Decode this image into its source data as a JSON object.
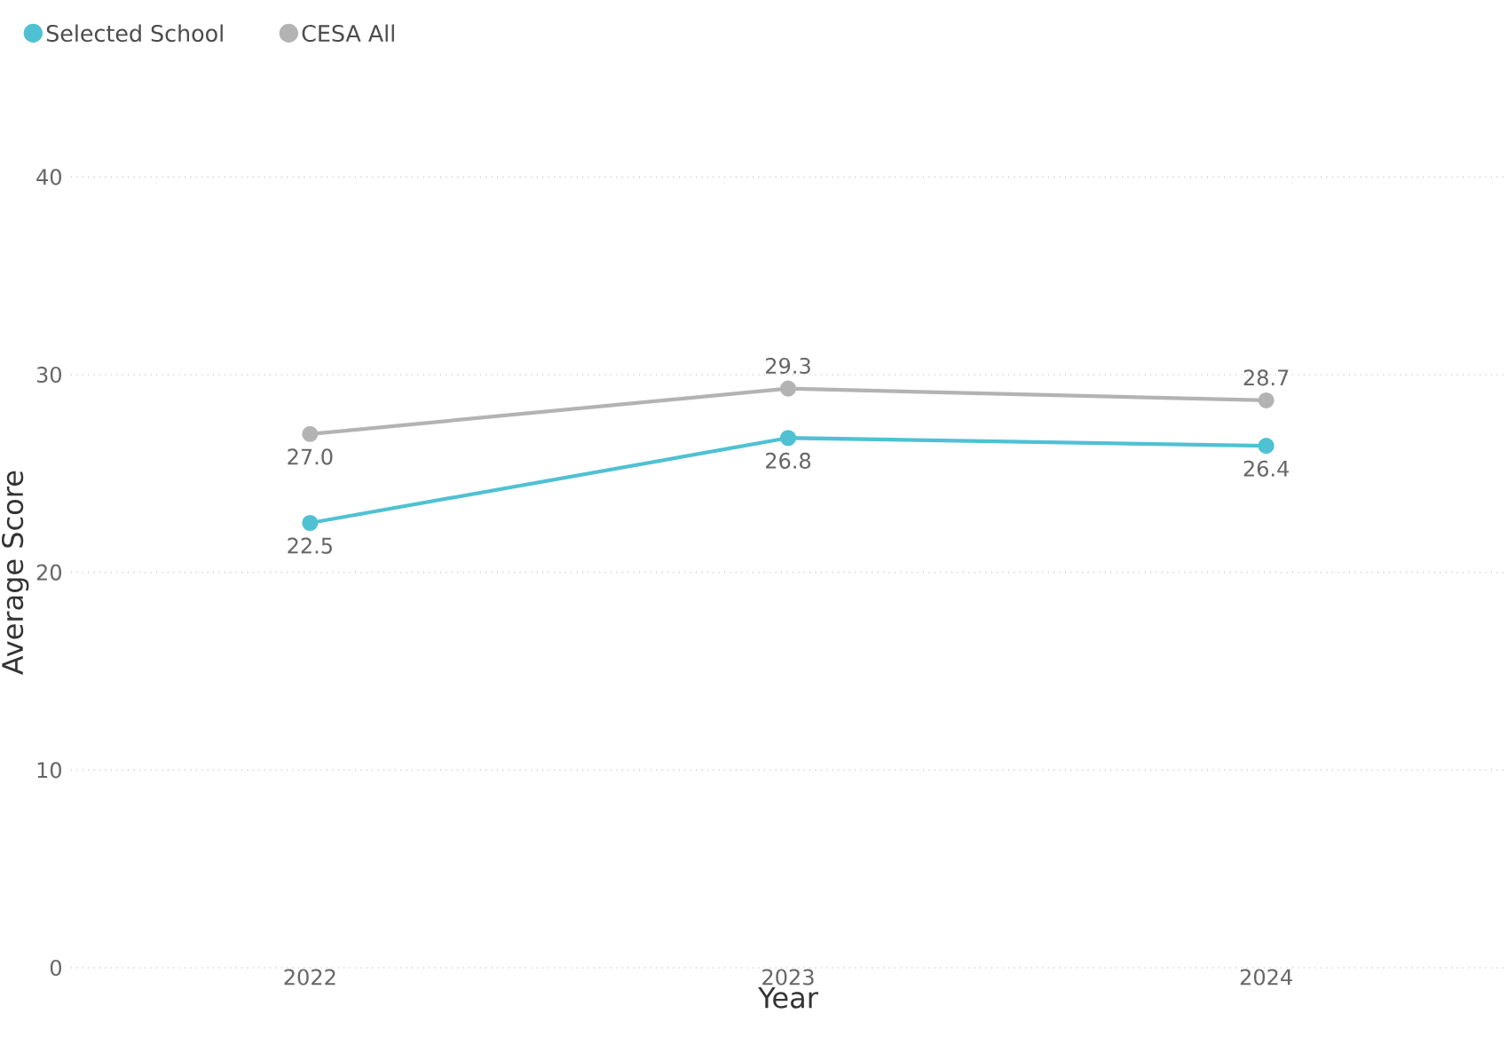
{
  "chart_data": {
    "type": "line",
    "xlabel": "Year",
    "ylabel": "Average Score",
    "categories": [
      "2022",
      "2023",
      "2024"
    ],
    "series": [
      {
        "name": "Selected School",
        "color": "#4fc1d3",
        "values": [
          22.5,
          26.8,
          26.4
        ],
        "value_labels": [
          "22.5",
          "26.8",
          "26.4"
        ]
      },
      {
        "name": "CESA All",
        "color": "#b3b3b3",
        "values": [
          27.0,
          29.3,
          28.7
        ],
        "value_labels": [
          "27.0",
          "29.3",
          "28.7"
        ]
      }
    ],
    "ylim": [
      0,
      40
    ],
    "yticks": [
      0,
      10,
      20,
      30,
      40
    ],
    "grid": "y",
    "legend": "top left",
    "marker": "circle",
    "line_style": "solid"
  }
}
